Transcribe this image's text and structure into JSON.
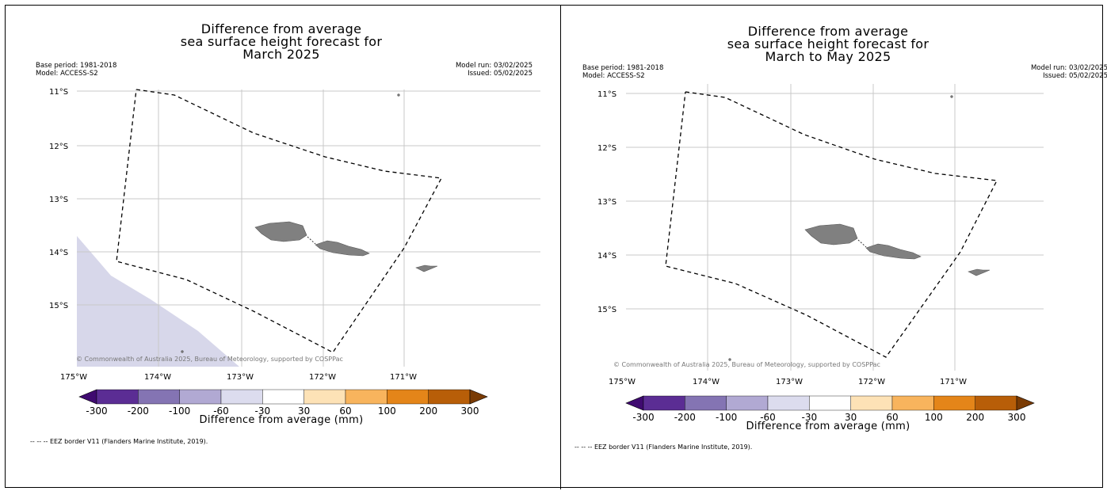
{
  "panels": [
    {
      "title_lines": [
        "Difference from average",
        "sea surface height forecast for",
        "March 2025"
      ],
      "base_period": "Base period: 1981-2018",
      "model": "Model: ACCESS-S2",
      "model_run": "Model run: 03/02/2025",
      "issued": "Issued: 05/02/2025",
      "y_ticks": [
        "11°S",
        "12°S",
        "13°S",
        "14°S",
        "15°S"
      ],
      "x_ticks": [
        "175°W",
        "174°W",
        "173°W",
        "172°W",
        "171°W"
      ],
      "copyright": "© Commonwealth of Australia 2025, Bureau of Meteorology, supported by COSPPac",
      "colorbar_ticks": [
        "-300",
        "-200",
        "-100",
        "-60",
        "-30",
        "30",
        "60",
        "100",
        "200",
        "300"
      ],
      "colorbar_label": "Difference from average (mm)",
      "legend_note": "-- -- -- EEZ border V11 (Flanders Marine Institute, 2019).",
      "anomaly_region": "lower-left, -60 to -30 mm class"
    },
    {
      "title_lines": [
        "Difference from average",
        "sea surface height forecast for",
        "March to May 2025"
      ],
      "base_period": "Base period: 1981-2018",
      "model": "Model: ACCESS-S2",
      "model_run": "Model run: 03/02/2025",
      "issued": "Issued: 05/02/2025",
      "y_ticks": [
        "11°S",
        "12°S",
        "13°S",
        "14°S",
        "15°S"
      ],
      "x_ticks": [
        "175°W",
        "174°W",
        "173°W",
        "172°W",
        "171°W"
      ],
      "copyright": "© Commonwealth of Australia 2025, Bureau of Meteorology, supported by COSPPac",
      "colorbar_ticks": [
        "-300",
        "-200",
        "-100",
        "-60",
        "-30",
        "30",
        "60",
        "100",
        "200",
        "300"
      ],
      "colorbar_label": "Difference from average (mm)",
      "legend_note": "-- -- -- EEZ border V11 (Flanders Marine Institute, 2019).",
      "anomaly_region": "none"
    }
  ],
  "colors": {
    "bins": [
      "#3f0a70",
      "#5b2d94",
      "#8474b3",
      "#b1a9d3",
      "#dcdcee",
      "#ffffff",
      "#fde2b6",
      "#f8b45d",
      "#e48519",
      "#b85e08",
      "#7a3b04"
    ],
    "land": "#808080",
    "anomaly_fill": "#d7d7ea"
  }
}
